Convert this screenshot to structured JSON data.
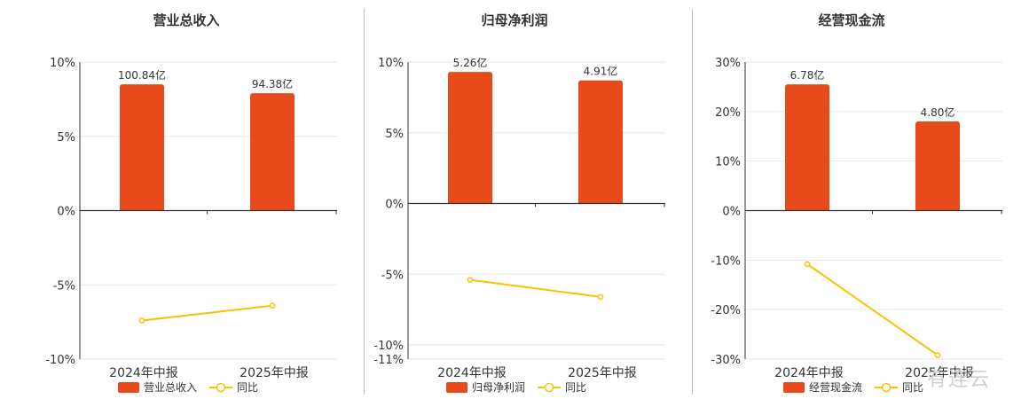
{
  "watermark": "有连云",
  "colors": {
    "bar": "#e84a1c",
    "line": "#f5c400"
  },
  "chart_data": [
    {
      "type": "bar",
      "title": "营业总收入",
      "categories": [
        "2024年中报",
        "2025年中报"
      ],
      "bar_series": {
        "name": "营业总收入",
        "values": [
          8.5,
          7.9
        ],
        "labels": [
          "100.84亿",
          "94.38亿"
        ]
      },
      "line_series": {
        "name": "同比",
        "values": [
          -7.4,
          -6.4
        ]
      },
      "yticks": [
        10,
        5,
        0,
        -5,
        -10
      ],
      "ytick_labels": [
        "10%",
        "5%",
        "0%",
        "-5%",
        "-10%"
      ],
      "ylim": [
        -10,
        10
      ],
      "grid": true,
      "legend_position": "bottom"
    },
    {
      "type": "bar",
      "title": "归母净利润",
      "categories": [
        "2024年中报",
        "2025年中报"
      ],
      "bar_series": {
        "name": "归母净利润",
        "values": [
          9.3,
          8.7
        ],
        "labels": [
          "5.26亿",
          "4.91亿"
        ]
      },
      "line_series": {
        "name": "同比",
        "values": [
          -5.4,
          -6.6
        ]
      },
      "yticks": [
        10,
        5,
        0,
        -5,
        -10,
        -11
      ],
      "ytick_labels": [
        "10%",
        "5%",
        "0%",
        "-5%",
        "-10%",
        "-11%"
      ],
      "ylim": [
        -11,
        10
      ],
      "grid": true,
      "legend_position": "bottom"
    },
    {
      "type": "bar",
      "title": "经营现金流",
      "categories": [
        "2024年中报",
        "2025年中报"
      ],
      "bar_series": {
        "name": "经营现金流",
        "values": [
          25.5,
          18.0
        ],
        "labels": [
          "6.78亿",
          "4.80亿"
        ]
      },
      "line_series": {
        "name": "同比",
        "values": [
          -10.8,
          -29.2
        ]
      },
      "yticks": [
        30,
        20,
        10,
        0,
        -10,
        -20,
        -30
      ],
      "ytick_labels": [
        "30%",
        "20%",
        "10%",
        "0%",
        "-10%",
        "-20%",
        "-30%"
      ],
      "ylim": [
        -30,
        30
      ],
      "grid": true,
      "legend_position": "bottom"
    }
  ]
}
